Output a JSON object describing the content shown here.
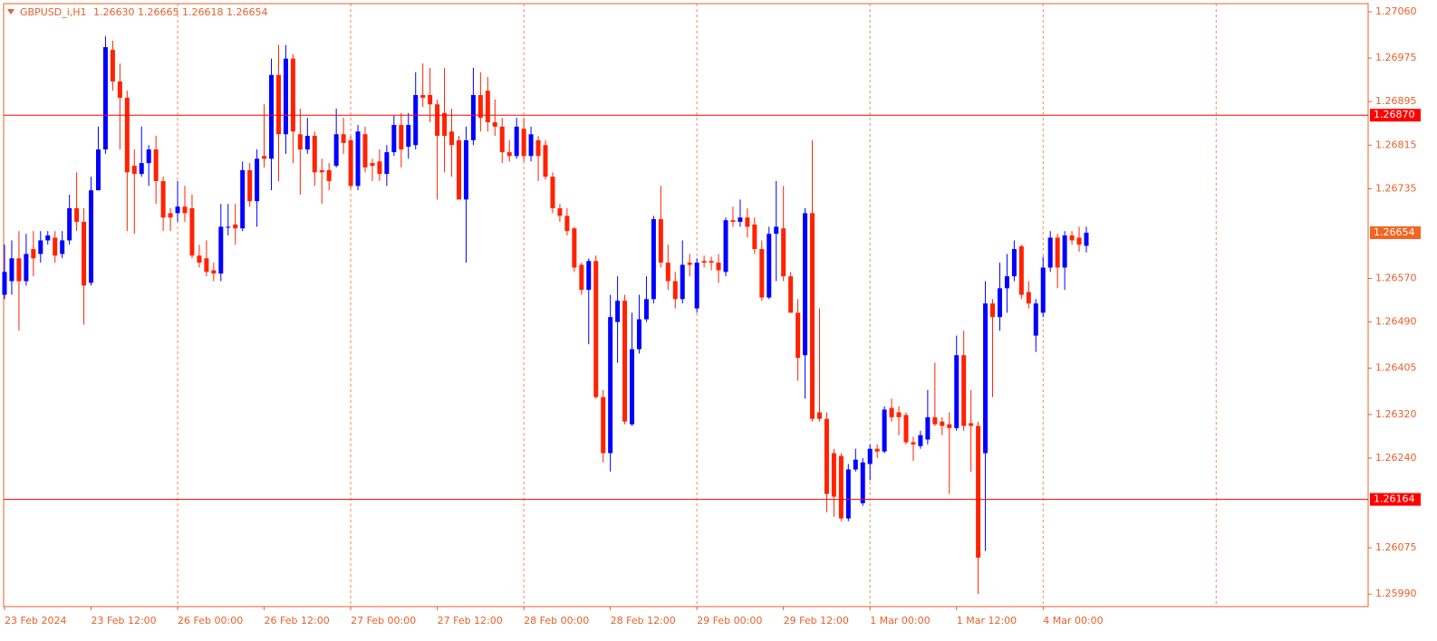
{
  "chart_data": {
    "type": "candlestick",
    "symbol": "GBPUSD_i,H1",
    "last_bar_labels": [
      "1.26630",
      "1.26665",
      "1.26618",
      "1.26654"
    ],
    "up_color": "#0000ff",
    "down_color": "#ff2200",
    "axis_color": "#e8602a",
    "grid_color": "#f08a5a",
    "level_color": "#ff0000",
    "current_color": "#f26522",
    "grid": true,
    "ylim": [
      1.25967,
      1.27075
    ],
    "yticks": [
      {
        "value": 1.2706,
        "label": "1.27060"
      },
      1.26975,
      1.26895,
      1.26815,
      1.26735,
      {
        "value": 1.2657,
        "label": "1.26570"
      },
      {
        "value": 1.2649,
        "label": "1.26490"
      },
      1.26405,
      {
        "value": 1.2632,
        "label": "1.26320"
      },
      {
        "value": 1.2624,
        "label": "1.26240"
      },
      1.26075,
      {
        "value": 1.2599,
        "label": "1.25990"
      }
    ],
    "levels": [
      {
        "value": 1.2687,
        "label": "1.26870"
      },
      1.26164
    ],
    "x_labels": [
      {
        "index": 0,
        "label": "23 Feb 2024"
      },
      {
        "index": 12,
        "label": "23 Feb 12:00"
      },
      {
        "index": 24,
        "label": "26 Feb 00:00"
      },
      {
        "index": 36,
        "label": "26 Feb 12:00"
      },
      {
        "index": 48,
        "label": "27 Feb 00:00"
      },
      {
        "index": 60,
        "label": "27 Feb 12:00"
      },
      {
        "index": 72,
        "label": "28 Feb 00:00"
      },
      {
        "index": 84,
        "label": "28 Feb 12:00"
      },
      {
        "index": 96,
        "label": "29 Feb 00:00"
      },
      {
        "index": 108,
        "label": "29 Feb 12:00"
      },
      {
        "index": 120,
        "label": "1 Mar 00:00"
      },
      {
        "index": 132,
        "label": "1 Mar 12:00"
      },
      {
        "index": 144,
        "label": "4 Mar 00:00"
      }
    ],
    "open": [
      1.2654,
      1.26565,
      1.26607,
      1.26565,
      1.26624,
      1.26615,
      1.2664,
      1.26645,
      1.26615,
      1.2664,
      1.26699,
      1.26674,
      1.26562,
      1.26732,
      1.26807,
      1.2699,
      1.26932,
      1.26902,
      1.26777,
      1.26762,
      1.26782,
      1.26807,
      1.26749,
      1.2669,
      1.2669,
      1.26702,
      1.26699,
      1.26612,
      1.26607,
      1.26585,
      1.26579,
      1.26665,
      1.26669,
      1.26662,
      1.26769,
      1.26712,
      1.26795,
      1.2679,
      1.26944,
      1.26835,
      1.26974,
      1.26835,
      1.26807,
      1.26832,
      1.26769,
      1.26769,
      1.26777,
      1.26835,
      1.26824,
      1.2674,
      1.26835,
      1.26782,
      1.26785,
      1.26762,
      1.26802,
      1.26852,
      1.26812,
      1.26815,
      1.26907,
      1.26907,
      1.2689,
      1.26874,
      1.2684,
      1.26824,
      1.26715,
      1.26824,
      1.26907,
      1.26915,
      1.26857,
      1.26849,
      1.26802,
      1.26795,
      1.26845,
      1.26795,
      1.26824,
      1.26815,
      1.26757,
      1.26699,
      1.26685,
      1.26662,
      1.26595,
      1.26549,
      1.26602,
      1.26352,
      1.26249,
      1.2649,
      1.26529,
      1.26302,
      1.2644,
      1.26495,
      1.26532,
      1.26679,
      1.26599,
      1.26565,
      1.26532,
      1.26599,
      1.26515,
      1.26602,
      1.26602,
      1.26599,
      1.26582,
      1.26677,
      1.26674,
      1.26682,
      1.26669,
      1.26624,
      1.26535,
      1.26652,
      1.26662,
      1.26574,
      1.26507,
      1.26429,
      1.2669,
      1.26324,
      1.26312,
      1.26249,
      1.26244,
      1.26129,
      1.26219,
      1.26157,
      1.26229,
      1.26257,
      1.26252,
      1.26332,
      1.26324,
      1.26319,
      1.26269,
      1.26262,
      1.26274,
      1.26315,
      1.26307,
      1.26302,
      1.26295,
      1.26429,
      1.26304,
      1.26299,
      1.26249,
      1.26524,
      1.26499,
      1.26552,
      1.26574,
      1.26629,
      1.26545,
      1.26465,
      1.26507,
      1.2659,
      1.26645,
      1.2659,
      1.26649,
      1.26645,
      1.2663
    ],
    "high": [
      1.26632,
      1.2664,
      1.26657,
      1.26652,
      1.26657,
      1.26657,
      1.26657,
      1.26657,
      1.26657,
      1.26724,
      1.26765,
      1.26699,
      1.26757,
      1.26849,
      1.27015,
      1.27007,
      1.26965,
      1.26915,
      1.26807,
      1.26849,
      1.26815,
      1.26832,
      1.26757,
      1.26699,
      1.26749,
      1.2674,
      1.26724,
      1.26632,
      1.2664,
      1.26599,
      1.26707,
      1.26707,
      1.26707,
      1.26785,
      1.26782,
      1.26807,
      1.2689,
      1.26974,
      1.26999,
      1.26999,
      1.26982,
      1.26882,
      1.26865,
      1.2684,
      1.2679,
      1.26782,
      1.26882,
      1.26865,
      1.26832,
      1.26852,
      1.26849,
      1.2679,
      1.26807,
      1.26815,
      1.26869,
      1.26874,
      1.26874,
      1.26949,
      1.26965,
      1.26957,
      1.26899,
      1.26957,
      1.26882,
      1.26832,
      1.26849,
      1.26957,
      1.26949,
      1.2694,
      1.26899,
      1.26865,
      1.26824,
      1.26865,
      1.26865,
      1.26849,
      1.26832,
      1.26824,
      1.26765,
      1.26707,
      1.26699,
      1.26665,
      1.26599,
      1.26607,
      1.26612,
      1.26365,
      1.2654,
      1.26574,
      1.2654,
      1.26507,
      1.2654,
      1.26574,
      1.26685,
      1.2674,
      1.26632,
      1.26582,
      1.2664,
      1.26615,
      1.26607,
      1.26612,
      1.2661,
      1.26615,
      1.26682,
      1.26702,
      1.26715,
      1.26699,
      1.26682,
      1.2664,
      1.26665,
      1.26749,
      1.2674,
      1.26582,
      1.26532,
      1.26699,
      1.26824,
      1.26515,
      1.26324,
      1.26257,
      1.26249,
      1.26229,
      1.26257,
      1.2624,
      1.26265,
      1.26265,
      1.26335,
      1.26349,
      1.26335,
      1.26324,
      1.26279,
      1.2629,
      1.26365,
      1.26415,
      1.26315,
      1.26324,
      1.26465,
      1.26474,
      1.26365,
      1.26307,
      1.26565,
      1.26532,
      1.26599,
      1.26615,
      1.2664,
      1.26632,
      1.26565,
      1.26532,
      1.2661,
      1.26657,
      1.26652,
      1.26657,
      1.26657,
      1.26665,
      1.26665
    ],
    "low": [
      1.26532,
      1.2654,
      1.26474,
      1.26557,
      1.26574,
      1.26599,
      1.26632,
      1.26599,
      1.26607,
      1.26632,
      1.26657,
      1.26485,
      1.26557,
      1.26732,
      1.26799,
      1.26915,
      1.26807,
      1.26657,
      1.26652,
      1.26757,
      1.2674,
      1.26707,
      1.26657,
      1.26657,
      1.26674,
      1.26674,
      1.26607,
      1.2659,
      1.26574,
      1.26565,
      1.26565,
      1.26649,
      1.26632,
      1.26657,
      1.26702,
      1.26665,
      1.26774,
      1.26732,
      1.26749,
      1.26799,
      1.26782,
      1.26724,
      1.26799,
      1.2674,
      1.26707,
      1.26732,
      1.26774,
      1.26799,
      1.26735,
      1.26732,
      1.26765,
      1.26749,
      1.26749,
      1.2674,
      1.26795,
      1.26774,
      1.2679,
      1.26807,
      1.26885,
      1.26857,
      1.26715,
      1.26765,
      1.26757,
      1.26715,
      1.26599,
      1.26815,
      1.2684,
      1.2684,
      1.26832,
      1.26782,
      1.26785,
      1.2679,
      1.26785,
      1.26785,
      1.26749,
      1.26752,
      1.2669,
      1.26674,
      1.26649,
      1.26582,
      1.2654,
      1.26449,
      1.26349,
      1.26232,
      1.26215,
      1.26415,
      1.26302,
      1.26299,
      1.26432,
      1.2649,
      1.26524,
      1.2659,
      1.26549,
      1.26515,
      1.26524,
      1.26574,
      1.26507,
      1.2659,
      1.26585,
      1.26562,
      1.26574,
      1.26665,
      1.26665,
      1.26645,
      1.26615,
      1.26529,
      1.26532,
      1.26565,
      1.26565,
      1.26507,
      1.26382,
      1.26349,
      1.26307,
      1.26307,
      1.2614,
      1.26132,
      1.26124,
      1.26124,
      1.26215,
      1.26152,
      1.26199,
      1.2624,
      1.26249,
      1.26307,
      1.26282,
      1.26265,
      1.26235,
      1.26257,
      1.26265,
      1.26299,
      1.26282,
      1.26174,
      1.2629,
      1.2629,
      1.26215,
      1.2599,
      1.26069,
      1.26352,
      1.26474,
      1.26507,
      1.26565,
      1.26532,
      1.26515,
      1.26435,
      1.26499,
      1.26582,
      1.26552,
      1.26549,
      1.26632,
      1.26619,
      1.26618
    ],
    "close": [
      1.26582,
      1.26607,
      1.26565,
      1.26615,
      1.26607,
      1.2664,
      1.26649,
      1.26612,
      1.2664,
      1.26699,
      1.26674,
      1.26557,
      1.26732,
      1.26807,
      1.26995,
      1.26932,
      1.26902,
      1.26765,
      1.26762,
      1.26782,
      1.26807,
      1.26749,
      1.26682,
      1.26682,
      1.26702,
      1.2669,
      1.26612,
      1.26599,
      1.26582,
      1.26579,
      1.26665,
      1.26665,
      1.26662,
      1.26769,
      1.26712,
      1.2679,
      1.2679,
      1.26944,
      1.26835,
      1.26974,
      1.2684,
      1.26807,
      1.26832,
      1.26765,
      1.26765,
      1.26749,
      1.26835,
      1.26819,
      1.2674,
      1.2684,
      1.26774,
      1.26777,
      1.26762,
      1.26802,
      1.26852,
      1.26807,
      1.26852,
      1.26907,
      1.26902,
      1.2689,
      1.26832,
      1.26832,
      1.26815,
      1.26715,
      1.26824,
      1.26907,
      1.26865,
      1.26857,
      1.26849,
      1.26802,
      1.26795,
      1.26849,
      1.26795,
      1.26835,
      1.26795,
      1.26757,
      1.26699,
      1.26685,
      1.26657,
      1.2659,
      1.26549,
      1.26602,
      1.26352,
      1.26249,
      1.26499,
      1.26529,
      1.26307,
      1.2644,
      1.26495,
      1.26532,
      1.26679,
      1.26599,
      1.26565,
      1.26532,
      1.26595,
      1.26595,
      1.26599,
      1.26599,
      1.26599,
      1.26585,
      1.26677,
      1.26674,
      1.26682,
      1.26665,
      1.26624,
      1.26535,
      1.26652,
      1.26665,
      1.26574,
      1.26507,
      1.26424,
      1.2669,
      1.26312,
      1.26312,
      1.26174,
      1.26169,
      1.26129,
      1.26219,
      1.26237,
      1.26232,
      1.26257,
      1.26252,
      1.26329,
      1.26315,
      1.26315,
      1.26269,
      1.26265,
      1.26282,
      1.26315,
      1.26302,
      1.26299,
      1.26295,
      1.26429,
      1.26299,
      1.26299,
      1.26057,
      1.26524,
      1.26499,
      1.26552,
      1.26574,
      1.26624,
      1.2654,
      1.26524,
      1.26524,
      1.2659,
      1.26645,
      1.2659,
      1.26649,
      1.2664,
      1.26632,
      1.26654
    ]
  }
}
